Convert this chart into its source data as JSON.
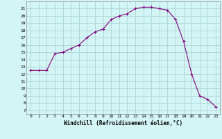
{
  "x": [
    0,
    1,
    2,
    3,
    4,
    5,
    6,
    7,
    8,
    9,
    10,
    11,
    12,
    13,
    14,
    15,
    16,
    17,
    18,
    19,
    20,
    21,
    22,
    23
  ],
  "y": [
    12.5,
    12.5,
    12.5,
    14.8,
    15.0,
    15.5,
    16.0,
    17.0,
    17.8,
    18.2,
    19.5,
    20.0,
    20.3,
    21.0,
    21.2,
    21.2,
    21.0,
    20.8,
    19.5,
    16.5,
    12.0,
    9.0,
    8.5,
    7.5
  ],
  "line_color": "#800080",
  "marker": "+",
  "marker_size": 3,
  "bg_color": "#d4f5f5",
  "grid_color": "#b0d8d8",
  "xlabel": "Windchill (Refroidissement éolien,°C)",
  "ylabel_ticks": [
    7,
    8,
    9,
    10,
    11,
    12,
    13,
    14,
    15,
    16,
    17,
    18,
    19,
    20,
    21
  ],
  "xlim": [
    -0.5,
    23.5
  ],
  "ylim": [
    6.5,
    22.0
  ]
}
